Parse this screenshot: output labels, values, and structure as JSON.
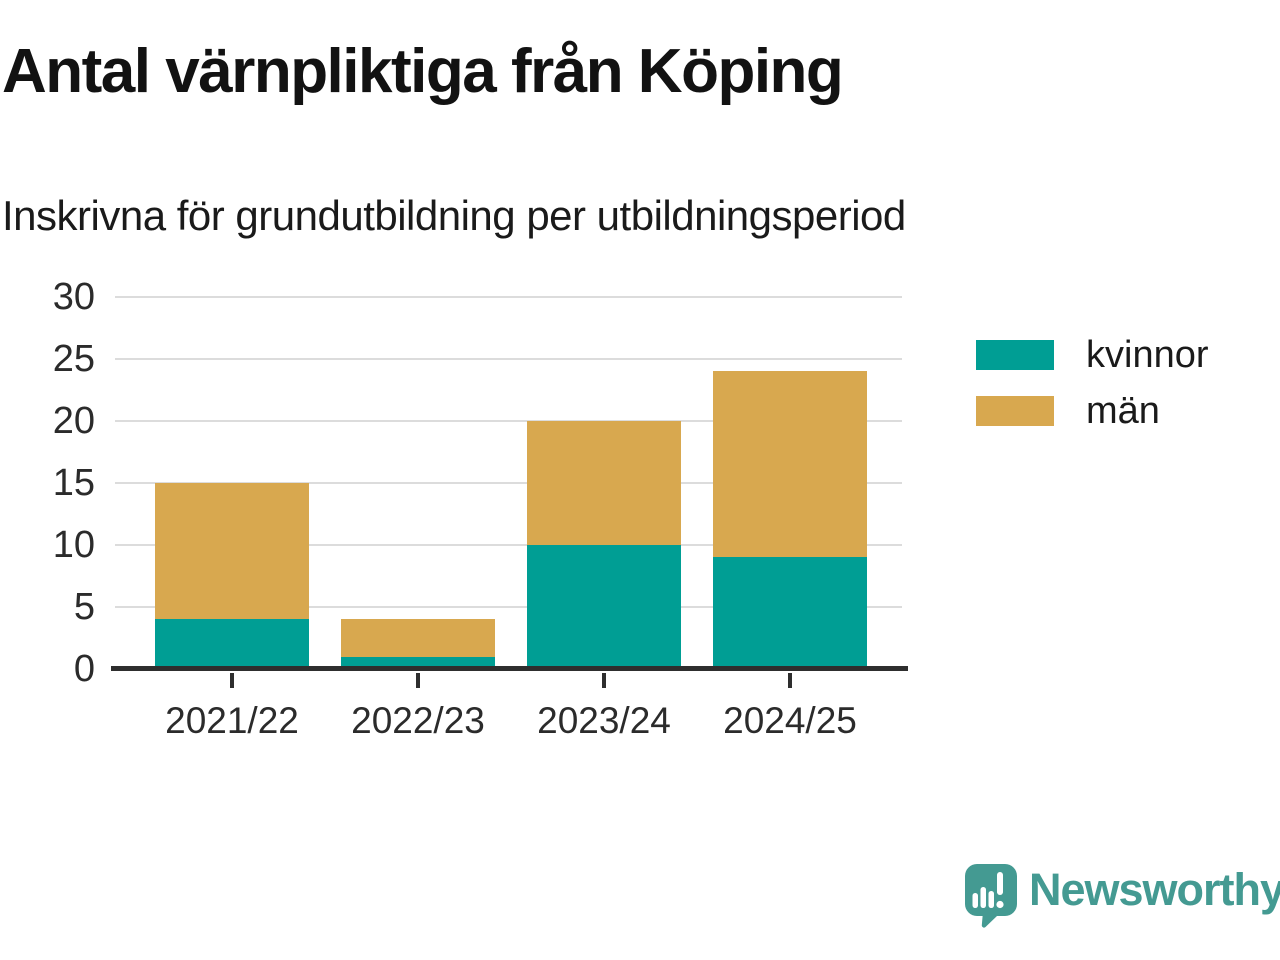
{
  "header": {
    "title": "Antal värnpliktiga från Köping",
    "subtitle": "Inskrivna för grundutbildning per utbildningsperiod"
  },
  "chart_data": {
    "type": "bar",
    "stacked": true,
    "categories": [
      "2021/22",
      "2022/23",
      "2023/24",
      "2024/25"
    ],
    "series": [
      {
        "name": "kvinnor",
        "color": "#009E94",
        "values": [
          4,
          1,
          10,
          9
        ]
      },
      {
        "name": "män",
        "color": "#D8A84F",
        "values": [
          11,
          3,
          10,
          15
        ]
      }
    ],
    "stack_totals": [
      15,
      4,
      20,
      24
    ],
    "title": "Antal värnpliktiga från Köping",
    "subtitle": "Inskrivna för grundutbildning per utbildningsperiod",
    "xlabel": "",
    "ylabel": "",
    "ylim": [
      0,
      30
    ],
    "yticks": [
      0,
      5,
      10,
      15,
      20,
      25,
      30
    ],
    "grid": true,
    "legend_position": "right"
  },
  "colors": {
    "axis": "#2e2e2e",
    "gridline": "#dcdcdc",
    "text": "#1a1a1a"
  },
  "branding": {
    "logo_text": "Newsworthy",
    "logo_color": "#449A92",
    "logo_icon": "newsworthy-speech-bubble-chart-icon"
  }
}
